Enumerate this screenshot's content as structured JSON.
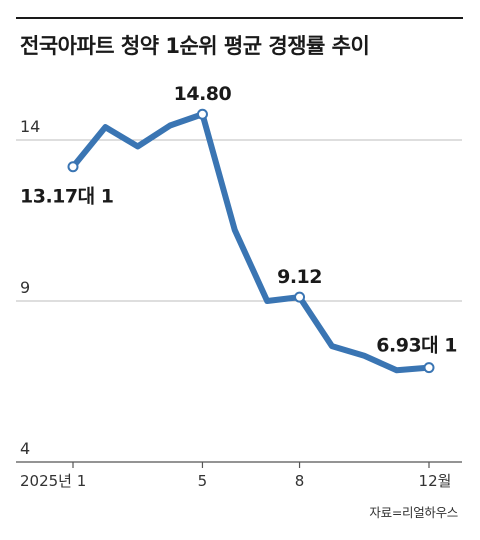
{
  "chart_data": {
    "type": "line",
    "title": "전국아파트 청약 1순위 평균 경쟁률 추이",
    "xlabel": "",
    "ylabel": "",
    "x": [
      1,
      2,
      3,
      4,
      5,
      6,
      7,
      8,
      9,
      10,
      11,
      12
    ],
    "x_tick_values": [
      1,
      5,
      8,
      12
    ],
    "x_tick_labels": [
      "2025년 1",
      "5",
      "8",
      "12월"
    ],
    "y_ticks": [
      4,
      9,
      14
    ],
    "ylim": [
      4,
      15.5
    ],
    "grid": true,
    "series": [
      {
        "values": [
          13.17,
          14.4,
          13.8,
          14.45,
          14.8,
          11.2,
          9.0,
          9.12,
          7.6,
          7.3,
          6.85,
          6.93
        ],
        "color": "#3a75b3"
      }
    ],
    "annotations": [
      {
        "index": 0,
        "label": "13.17대 1",
        "position": "below"
      },
      {
        "index": 4,
        "label": "14.80",
        "position": "above"
      },
      {
        "index": 7,
        "label": "9.12",
        "position": "above"
      },
      {
        "index": 11,
        "label": "6.93대 1",
        "position": "above-left"
      }
    ]
  },
  "source": "자료=리얼하우스"
}
